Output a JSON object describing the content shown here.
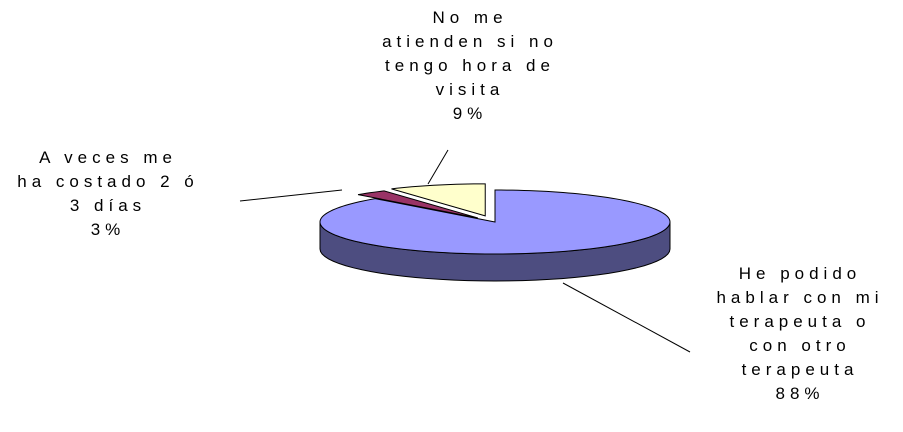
{
  "chart_data": {
    "type": "pie3d",
    "categories": [
      "He podido\nhablar con mi\nterapeuta o\ncon otro\nterapeuta",
      "A veces me\nha costado 2 ó\n3 días",
      "No me\natienden si no\ntengo hora de\nvisita"
    ],
    "values": [
      88,
      3,
      9
    ],
    "value_labels": [
      "88%",
      "3%",
      "9%"
    ],
    "colors": [
      "#9999ff",
      "#993366",
      "#ffffcc"
    ]
  }
}
